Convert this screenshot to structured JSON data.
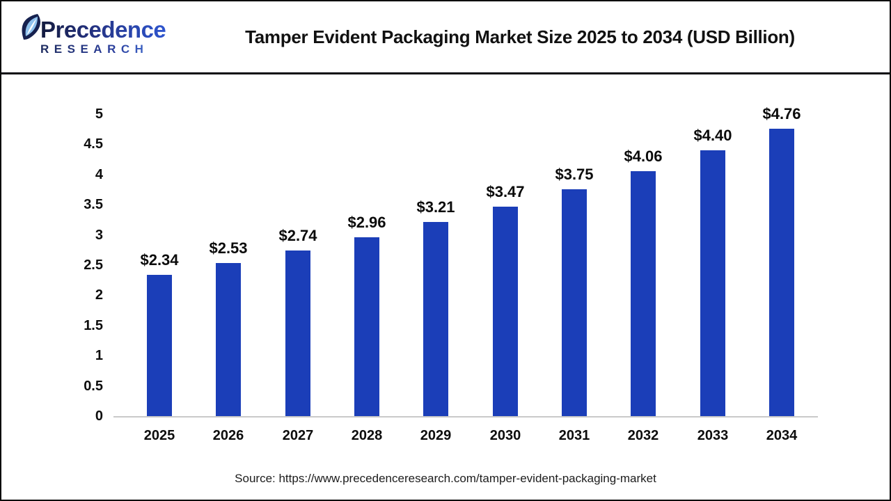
{
  "header": {
    "logo": {
      "brand": "Precedence",
      "sub": "RESEARCH",
      "icon": "leaf-pinwheel-icon",
      "brand_color_dark": "#131b3e",
      "brand_color_light": "#2e55cf"
    },
    "title": "Tamper Evident Packaging Market Size 2025 to 2034 (USD Billion)"
  },
  "chart_data": {
    "type": "bar",
    "title": "Tamper Evident Packaging Market Size 2025 to 2034 (USD Billion)",
    "categories": [
      "2025",
      "2026",
      "2027",
      "2028",
      "2029",
      "2030",
      "2031",
      "2032",
      "2033",
      "2034"
    ],
    "values": [
      2.34,
      2.53,
      2.74,
      2.96,
      3.21,
      3.47,
      3.75,
      4.06,
      4.4,
      4.76
    ],
    "value_labels": [
      "$2.34",
      "$2.53",
      "$2.74",
      "$2.96",
      "$3.21",
      "$3.47",
      "$3.75",
      "$4.06",
      "$4.40",
      "$4.76"
    ],
    "unit": "USD Billion",
    "xlabel": "",
    "ylabel": "",
    "ylim": [
      0,
      5
    ],
    "yticks": [
      {
        "value": 0,
        "label": "0"
      },
      {
        "value": 0.5,
        "label": "0.5"
      },
      {
        "value": 1,
        "label": "1"
      },
      {
        "value": 1.5,
        "label": "1.5"
      },
      {
        "value": 2,
        "label": "2"
      },
      {
        "value": 2.5,
        "label": "2.5"
      },
      {
        "value": 3,
        "label": "3"
      },
      {
        "value": 3.5,
        "label": "3.5"
      },
      {
        "value": 4,
        "label": "4"
      },
      {
        "value": 4.5,
        "label": "4.5"
      },
      {
        "value": 5,
        "label": "5"
      }
    ],
    "grid": false,
    "legend": null,
    "bar_color": "#1b3eb8",
    "axis_line_color": "#c9c9c9"
  },
  "footer": {
    "source": "Source: https://www.precedenceresearch.com/tamper-evident-packaging-market"
  }
}
